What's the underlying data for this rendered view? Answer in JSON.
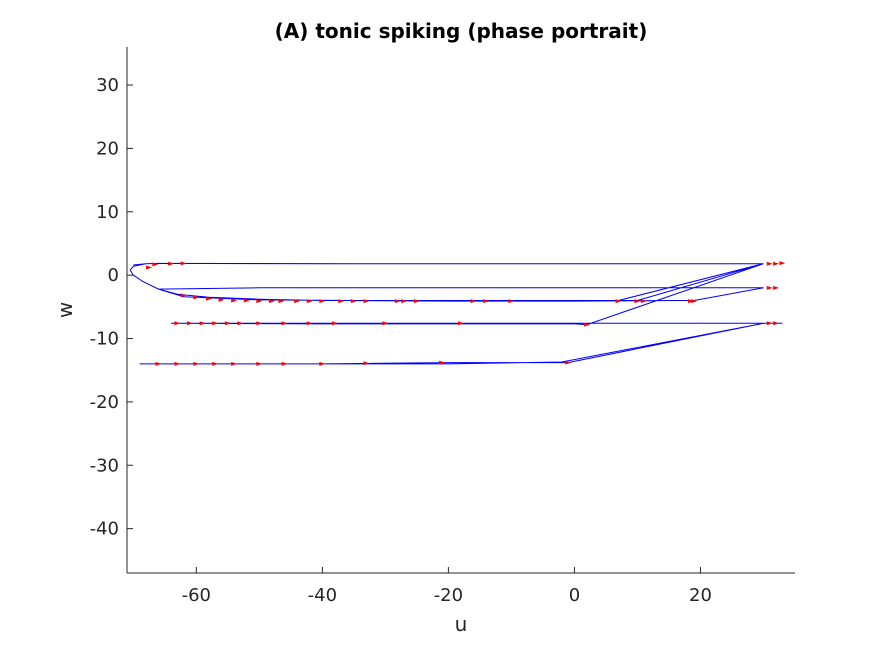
{
  "chart_data": {
    "type": "line",
    "title": "(A) tonic spiking (phase portrait)",
    "xlabel": "u",
    "ylabel": "w",
    "xlim": [
      -71,
      35
    ],
    "ylim": [
      -47,
      36
    ],
    "xticks": [
      -60,
      -40,
      -20,
      0,
      20
    ],
    "yticks": [
      -40,
      -30,
      -20,
      -10,
      0,
      10,
      20,
      30
    ],
    "grid": false,
    "legend": "none",
    "colors": {
      "trajectory": "#0000ff",
      "arrows": "#ff0000",
      "axis": "#262626"
    },
    "series": [
      {
        "values": [
          [
            -70,
            1.6
          ],
          [
            -68,
            1.8
          ],
          [
            -66,
            1.85
          ],
          [
            -35,
            1.8
          ],
          [
            0,
            1.8
          ],
          [
            30,
            1.8
          ],
          [
            7,
            -4
          ],
          [
            5,
            -4
          ],
          [
            0,
            -4.1
          ],
          [
            -10,
            -4.1
          ],
          [
            -20,
            -4.1
          ],
          [
            -30,
            -4.0
          ],
          [
            -40,
            -4.0
          ],
          [
            -50,
            -3.8
          ],
          [
            -58,
            -3.5
          ],
          [
            -63,
            -3.0
          ],
          [
            -66,
            -2.2
          ],
          [
            -68.5,
            -1.0
          ],
          [
            -70,
            0.0
          ],
          [
            -70.5,
            0.8
          ],
          [
            -70,
            1.4
          ],
          [
            -68,
            1.8
          ],
          [
            -66,
            1.85
          ],
          [
            -40,
            1.8
          ],
          [
            0,
            1.8
          ],
          [
            30,
            1.8
          ],
          [
            10,
            -4
          ],
          [
            8,
            -4
          ],
          [
            0,
            -4.1
          ],
          [
            -20,
            -4.1
          ],
          [
            -35,
            -4.0
          ],
          [
            -50,
            -3.9
          ],
          [
            -62,
            -3.4
          ],
          [
            -66,
            -2.2
          ],
          [
            -50,
            -2
          ],
          [
            0,
            -2
          ],
          [
            30,
            -2
          ],
          [
            19,
            -4
          ],
          [
            16,
            -4
          ],
          [
            0,
            -4.1
          ],
          [
            -20,
            -4.1
          ],
          [
            -36,
            -4.0
          ],
          [
            -30,
            -4
          ],
          [
            7,
            -4
          ],
          [
            30,
            1.8
          ],
          [
            2,
            -7.8
          ],
          [
            0,
            -7.7
          ],
          [
            -20,
            -7.7
          ],
          [
            -40,
            -7.7
          ],
          [
            -64,
            -7.6
          ],
          [
            -40,
            -7.6
          ],
          [
            0,
            -7.6
          ],
          [
            30,
            -7.6
          ],
          [
            -1,
            -13.8
          ],
          [
            -20,
            -13.8
          ],
          [
            -40,
            -14
          ],
          [
            -60,
            -14
          ],
          [
            -69,
            -14
          ],
          [
            -50,
            -14
          ],
          [
            -20,
            -14
          ],
          [
            -2,
            -13.7
          ],
          [
            30,
            -7.6
          ],
          [
            31,
            -7.6
          ],
          [
            33,
            -7.6
          ]
        ]
      }
    ],
    "arrows": [
      [
        31,
        1.8
      ],
      [
        32,
        1.8
      ],
      [
        33,
        1.9
      ],
      [
        31,
        -2
      ],
      [
        32,
        -2
      ],
      [
        31,
        -7.6
      ],
      [
        32,
        -7.6
      ],
      [
        -66.5,
        1.7
      ],
      [
        -64,
        1.8
      ],
      [
        -62,
        1.85
      ],
      [
        -67.5,
        1.2
      ],
      [
        -62,
        -3.2
      ],
      [
        -60,
        -3.5
      ],
      [
        -58,
        -3.7
      ],
      [
        -56,
        -3.9
      ],
      [
        -54,
        -4
      ],
      [
        -52,
        -4
      ],
      [
        -50,
        -4.1
      ],
      [
        -48,
        -4.1
      ],
      [
        -46.5,
        -4.1
      ],
      [
        -44,
        -4.1
      ],
      [
        -42,
        -4.1
      ],
      [
        -40,
        -4.1
      ],
      [
        -37,
        -4.1
      ],
      [
        -35,
        -4.1
      ],
      [
        -33,
        -4.1
      ],
      [
        -28,
        -4.1
      ],
      [
        -27,
        -4.1
      ],
      [
        -25,
        -4.1
      ],
      [
        -16,
        -4.1
      ],
      [
        -14,
        -4.1
      ],
      [
        -10,
        -4.1
      ],
      [
        7,
        -4.1
      ],
      [
        10,
        -4.1
      ],
      [
        11,
        -4.1
      ],
      [
        19,
        -4.1
      ],
      [
        18.5,
        -4.1
      ],
      [
        -63,
        -7.6
      ],
      [
        -61,
        -7.6
      ],
      [
        -59,
        -7.6
      ],
      [
        -57,
        -7.6
      ],
      [
        -55,
        -7.6
      ],
      [
        -53,
        -7.6
      ],
      [
        -50,
        -7.6
      ],
      [
        -46,
        -7.6
      ],
      [
        -42,
        -7.6
      ],
      [
        -38,
        -7.6
      ],
      [
        -30,
        -7.6
      ],
      [
        -18,
        -7.6
      ],
      [
        2,
        -7.8
      ],
      [
        -66,
        -14
      ],
      [
        -63,
        -14
      ],
      [
        -60,
        -14
      ],
      [
        -57,
        -14
      ],
      [
        -54,
        -14
      ],
      [
        -50,
        -14
      ],
      [
        -46,
        -14
      ],
      [
        -40,
        -14
      ],
      [
        -33,
        -13.9
      ],
      [
        -21,
        -13.8
      ],
      [
        -1,
        -13.8
      ]
    ]
  }
}
